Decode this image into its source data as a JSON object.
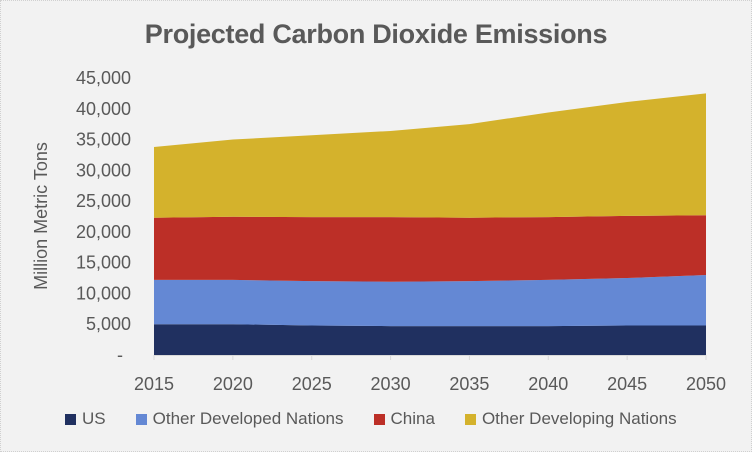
{
  "chart_data": {
    "type": "area",
    "stacked": true,
    "title": "Projected Carbon Dioxide Emissions",
    "xlabel": "",
    "ylabel": "Million Metric Tons",
    "x": [
      "2015",
      "2020",
      "2025",
      "2030",
      "2035",
      "2040",
      "2045",
      "2050"
    ],
    "ylim": [
      0,
      45000
    ],
    "yticks": [
      0,
      5000,
      10000,
      15000,
      20000,
      25000,
      30000,
      35000,
      40000,
      45000
    ],
    "ytick_labels": [
      "-",
      "5,000",
      "10,000",
      "15,000",
      "20,000",
      "25,000",
      "30,000",
      "35,000",
      "40,000",
      "45,000"
    ],
    "grid": false,
    "legend_position": "bottom",
    "series": [
      {
        "name": "US",
        "color": "#203060",
        "values": [
          5000,
          5000,
          4800,
          4700,
          4700,
          4700,
          4800,
          4800
        ]
      },
      {
        "name": "Other Developed Nations",
        "color": "#6488d4",
        "values": [
          7200,
          7200,
          7200,
          7200,
          7300,
          7500,
          7700,
          8200
        ]
      },
      {
        "name": "China",
        "color": "#bc2f27",
        "values": [
          10100,
          10250,
          10400,
          10500,
          10300,
          10200,
          10100,
          9700
        ]
      },
      {
        "name": "Other Developing Nations",
        "color": "#d4b22c",
        "values": [
          11500,
          12550,
          13300,
          14000,
          15200,
          17000,
          18500,
          19800
        ]
      }
    ]
  }
}
